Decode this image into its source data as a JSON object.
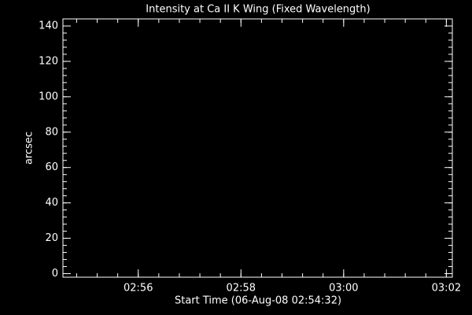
{
  "chart_data": {
    "type": "line",
    "title": "Intensity at Ca II K Wing (Fixed Wavelength)",
    "xlabel": "Start Time (06-Aug-08 02:54:32)",
    "ylabel": "arcsec",
    "series": [],
    "xlim": [
      "02:54:32",
      "03:02:07"
    ],
    "xticks": [
      {
        "value": "02:56:00",
        "label": "02:56"
      },
      {
        "value": "02:58:00",
        "label": "02:58"
      },
      {
        "value": "03:00:00",
        "label": "03:00"
      },
      {
        "value": "03:02:00",
        "label": "03:02"
      }
    ],
    "ylim": [
      -2,
      144
    ],
    "yticks": [
      0,
      20,
      40,
      60,
      80,
      100,
      120,
      140
    ],
    "minor_ticks_per_major": 4,
    "background": "#000000",
    "axis_color": "#ffffff"
  }
}
